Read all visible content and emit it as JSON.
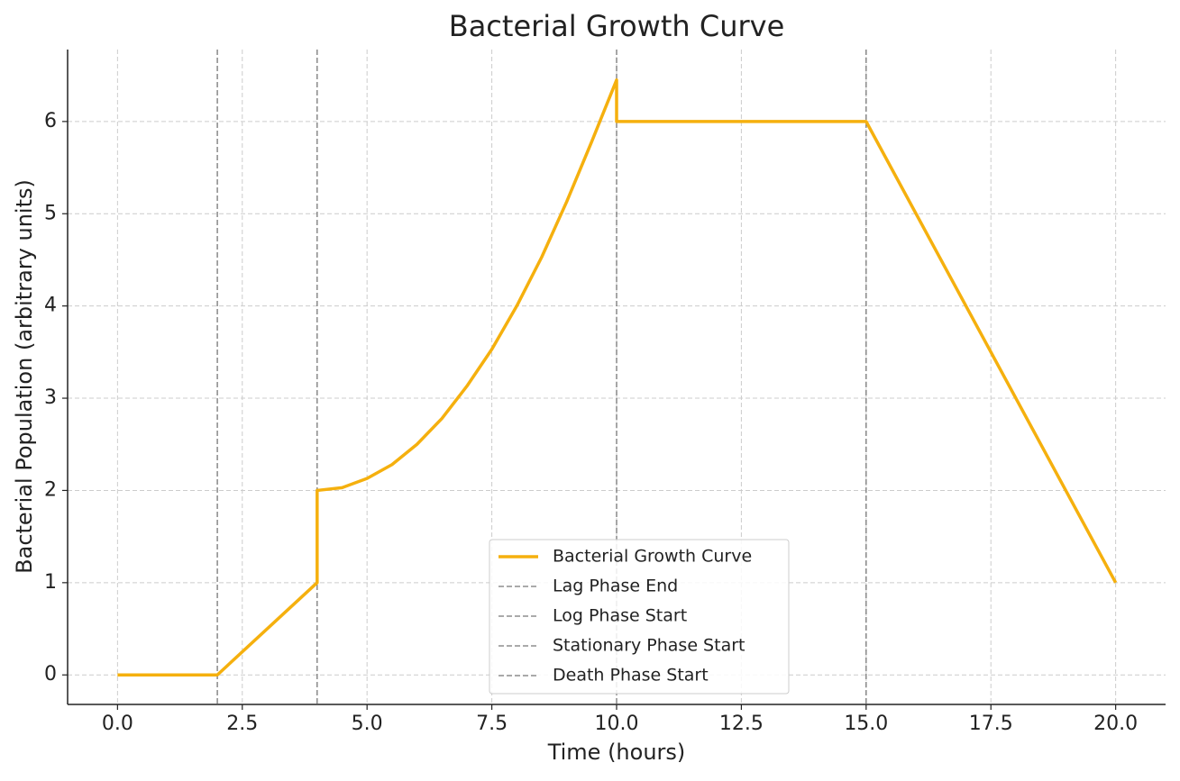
{
  "chart_data": {
    "type": "line",
    "title": "Bacterial Growth Curve",
    "x_label": "Time (hours)",
    "y_label": "Bacterial Population (arbitrary units)",
    "series": [
      {
        "name": "Bacterial Growth Curve",
        "color": "#f5b00e",
        "x": [
          0,
          2,
          4,
          4,
          4.5,
          5,
          5.5,
          6,
          6.5,
          7,
          7.5,
          8,
          8.5,
          9,
          9.5,
          10,
          10,
          15,
          20
        ],
        "values": [
          0,
          0,
          1,
          2,
          2.03,
          2.13,
          2.28,
          2.5,
          2.78,
          3.13,
          3.53,
          4,
          4.53,
          5.13,
          5.78,
          6.45,
          6,
          6,
          1
        ]
      }
    ],
    "vlines": [
      {
        "name": "Lag Phase End",
        "x": 2,
        "color": "#777777"
      },
      {
        "name": "Log Phase Start",
        "x": 4,
        "color": "#777777"
      },
      {
        "name": "Stationary Phase Start",
        "x": 10,
        "color": "#777777"
      },
      {
        "name": "Death Phase Start",
        "x": 15,
        "color": "#777777"
      }
    ],
    "xlim": [
      -1,
      21
    ],
    "ylim": [
      -0.32,
      6.78
    ],
    "xticks": [
      {
        "value": 0,
        "label": "0.0"
      },
      {
        "value": 2.5,
        "label": "2.5"
      },
      {
        "value": 5,
        "label": "5.0"
      },
      {
        "value": 7.5,
        "label": "7.5"
      },
      {
        "value": 10,
        "label": "10.0"
      },
      {
        "value": 12.5,
        "label": "12.5"
      },
      {
        "value": 15,
        "label": "15.0"
      },
      {
        "value": 17.5,
        "label": "17.5"
      },
      {
        "value": 20,
        "label": "20.0"
      }
    ],
    "yticks": [
      0,
      1,
      2,
      3,
      4,
      5,
      6
    ],
    "grid": true,
    "legend": "lower center"
  }
}
